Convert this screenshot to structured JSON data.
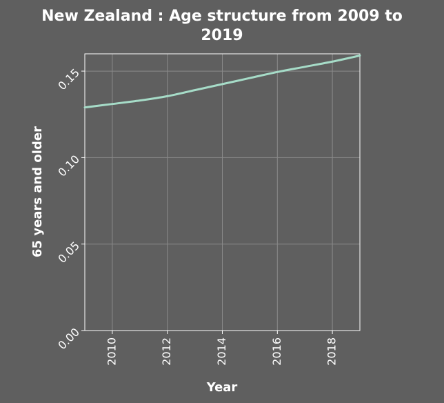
{
  "chart_data": {
    "type": "line",
    "title": "New Zealand : Age structure from 2009 to 2019",
    "title_lines": [
      "New Zealand : Age structure from 2009 to",
      "2019"
    ],
    "xlabel": "Year",
    "ylabel": "65 years and older",
    "xlim": [
      2009,
      2019
    ],
    "ylim": [
      0,
      0.16
    ],
    "xticks": [
      2010,
      2012,
      2014,
      2016,
      2018
    ],
    "yticks": [
      0.0,
      0.05,
      0.1,
      0.15
    ],
    "ytick_labels": [
      "0.00",
      "0.05",
      "0.10",
      "0.15"
    ],
    "grid": true,
    "series": [
      {
        "x": [
          2009,
          2010,
          2011,
          2012,
          2013,
          2014,
          2015,
          2016,
          2017,
          2018,
          2019
        ],
        "values": [
          0.129,
          0.131,
          0.133,
          0.1355,
          0.139,
          0.1425,
          0.146,
          0.1495,
          0.1525,
          0.1555,
          0.159
        ],
        "color": "#a6dcc8"
      }
    ]
  },
  "colors": {
    "background": "#5f5f5f",
    "text": "#ffffff",
    "grid": "#8a8a8a",
    "axis": "#ffffff",
    "line": "#a6dcc8"
  }
}
